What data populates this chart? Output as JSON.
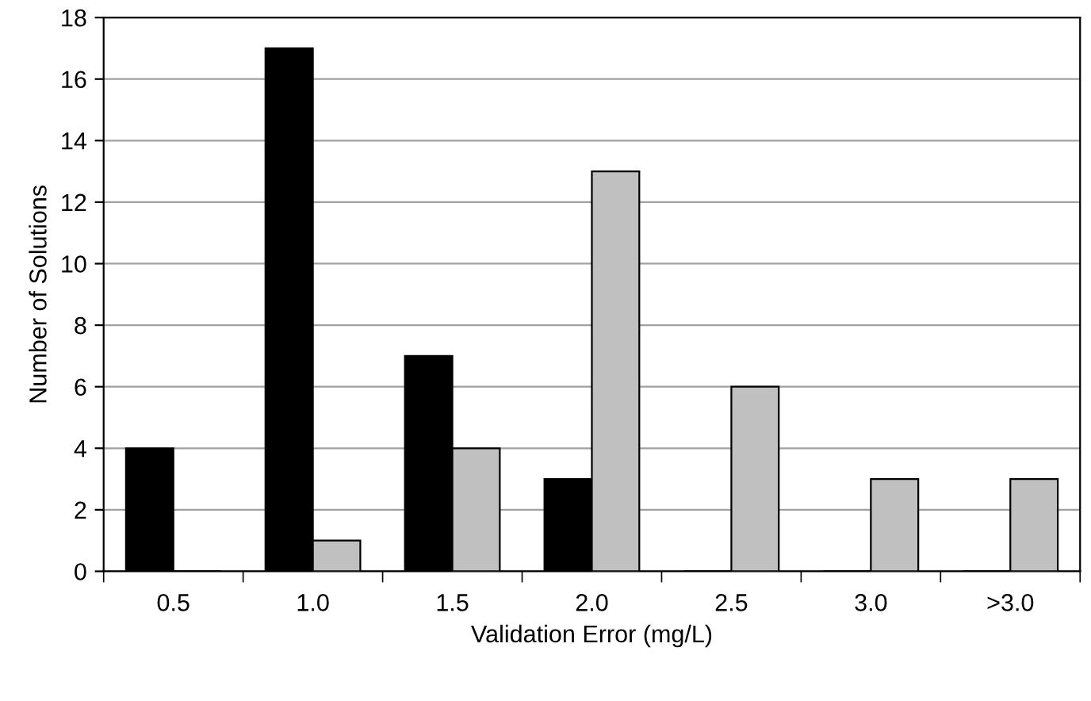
{
  "chart_data": {
    "type": "bar",
    "xlabel": "Validation Error (mg/L)",
    "ylabel": "Number of Solutions",
    "categories": [
      "0.5",
      "1.0",
      "1.5",
      "2.0",
      "2.5",
      "3.0",
      ">3.0"
    ],
    "series": [
      {
        "color": "#000000",
        "values": [
          4,
          17,
          7,
          3,
          0,
          0,
          0
        ]
      },
      {
        "color": "#c0c0c0",
        "values": [
          0,
          1,
          4,
          13,
          6,
          3,
          3
        ]
      }
    ],
    "ylim": [
      0,
      18
    ],
    "yticks": [
      0,
      2,
      4,
      6,
      8,
      10,
      12,
      14,
      16,
      18
    ],
    "grid": "y",
    "legend": false
  }
}
